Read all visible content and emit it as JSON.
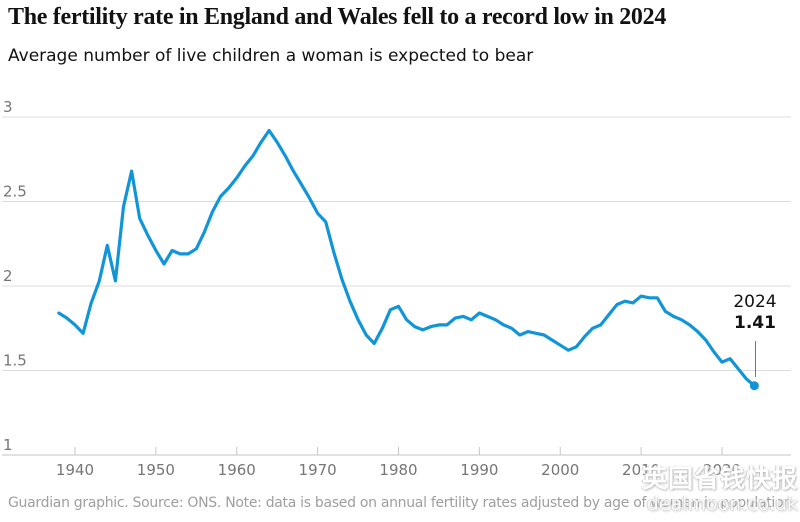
{
  "header": {
    "title": "The fertility rate in England and Wales fell to a record low in 2024",
    "subtitle": "Average number of live children a woman is expected to bear"
  },
  "chart_data": {
    "type": "line",
    "title": "The fertility rate in England and Wales fell to a record low in 2024",
    "subtitle": "Average number of live children a woman is expected to bear",
    "xlabel": "",
    "ylabel": "",
    "xlim": [
      1937,
      2026
    ],
    "ylim": [
      1,
      3
    ],
    "grid": "horizontal",
    "legend": "none",
    "line_color": "#1195d8",
    "gridline_color": "#dcdcdc",
    "axis_color": "#c6c6c6",
    "tick_label_color": "#767676",
    "x_ticks": [
      1940,
      1950,
      1960,
      1970,
      1980,
      1990,
      2000,
      2010,
      2020
    ],
    "y_ticks": [
      1,
      1.5,
      2,
      2.5,
      3
    ],
    "y_tick_labels": [
      "1",
      "1.5",
      "2",
      "2.5",
      "3"
    ],
    "x": [
      1938,
      1939,
      1940,
      1941,
      1942,
      1943,
      1944,
      1945,
      1946,
      1947,
      1948,
      1949,
      1950,
      1951,
      1952,
      1953,
      1954,
      1955,
      1956,
      1957,
      1958,
      1959,
      1960,
      1961,
      1962,
      1963,
      1964,
      1965,
      1966,
      1967,
      1968,
      1969,
      1970,
      1971,
      1972,
      1973,
      1974,
      1975,
      1976,
      1977,
      1978,
      1979,
      1980,
      1981,
      1982,
      1983,
      1984,
      1985,
      1986,
      1987,
      1988,
      1989,
      1990,
      1991,
      1992,
      1993,
      1994,
      1995,
      1996,
      1997,
      1998,
      1999,
      2000,
      2001,
      2002,
      2003,
      2004,
      2005,
      2006,
      2007,
      2008,
      2009,
      2010,
      2011,
      2012,
      2013,
      2014,
      2015,
      2016,
      2017,
      2018,
      2019,
      2020,
      2021,
      2022,
      2023,
      2024
    ],
    "series": [
      {
        "name": "Average number of live children a woman is expected to bear",
        "values": [
          1.84,
          1.81,
          1.77,
          1.72,
          1.9,
          2.03,
          2.24,
          2.03,
          2.47,
          2.68,
          2.4,
          2.3,
          2.21,
          2.13,
          2.21,
          2.19,
          2.19,
          2.22,
          2.32,
          2.44,
          2.53,
          2.58,
          2.64,
          2.71,
          2.77,
          2.85,
          2.92,
          2.85,
          2.77,
          2.68,
          2.6,
          2.52,
          2.43,
          2.38,
          2.2,
          2.04,
          1.91,
          1.8,
          1.71,
          1.66,
          1.75,
          1.86,
          1.88,
          1.8,
          1.76,
          1.74,
          1.76,
          1.77,
          1.77,
          1.81,
          1.82,
          1.8,
          1.84,
          1.82,
          1.8,
          1.77,
          1.75,
          1.71,
          1.73,
          1.72,
          1.71,
          1.68,
          1.65,
          1.62,
          1.64,
          1.7,
          1.75,
          1.77,
          1.83,
          1.89,
          1.91,
          1.9,
          1.94,
          1.93,
          1.93,
          1.85,
          1.82,
          1.8,
          1.77,
          1.73,
          1.68,
          1.61,
          1.55,
          1.57,
          1.51,
          1.45,
          1.41
        ]
      }
    ],
    "annotation": {
      "year": "2024",
      "value": "1.41"
    },
    "end_dot": true
  },
  "footer": {
    "text": "Guardian graphic. Source: ONS. Note: data is based on annual fertility rates adjusted by age of women in population"
  },
  "watermark": {
    "line1": "英国省钱快报",
    "line2": "dealmoon.co.uk"
  }
}
